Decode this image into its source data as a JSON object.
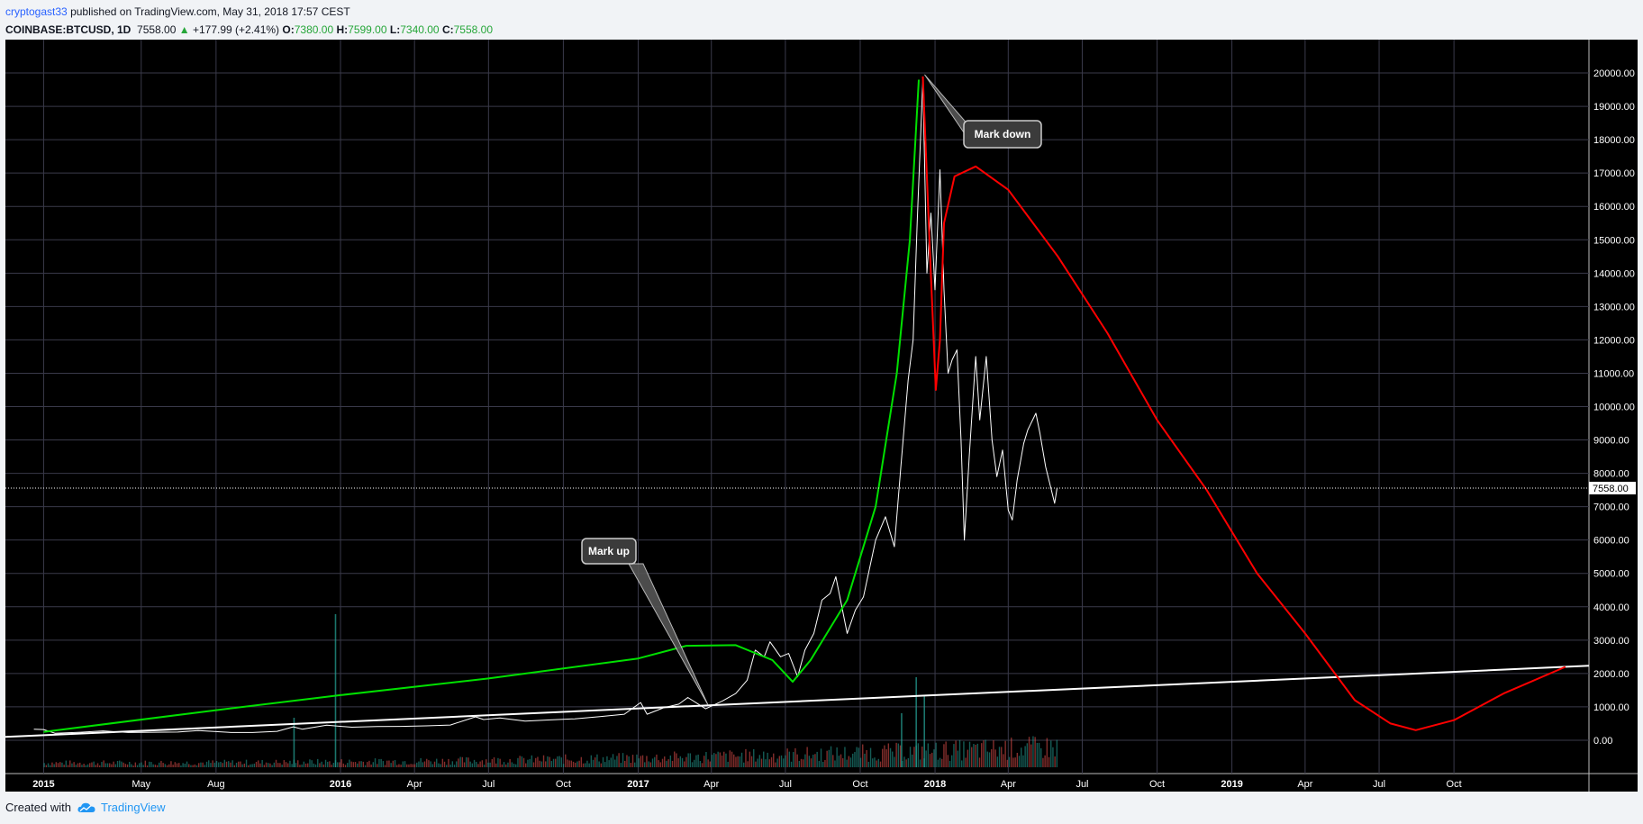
{
  "header": {
    "author": "cryptogast33",
    "published_text": "published on TradingView.com, May 31, 2018 17:57 CEST",
    "symbol": "COINBASE:BTCUSD, 1D",
    "last": "7558.00",
    "change_arrow": "▲",
    "change": "+177.99 (+2.41%)",
    "open_label": "O:",
    "open": "7380.00",
    "high_label": "H:",
    "high": "7599.00",
    "low_label": "L:",
    "low": "7340.00",
    "close_label": "C:",
    "close": "7558.00"
  },
  "footer": {
    "created_with": "Created with",
    "brand": "TradingView",
    "brand_icon": "tradingview-cloud-icon"
  },
  "colors": {
    "background": "#000000",
    "grid": "#3a3a4a",
    "price": "#ffffff",
    "markup_curve": "#00e000",
    "markdown_curve": "#ff0000",
    "trendline": "#ffffff",
    "volume_up": "#26a69a",
    "volume_down": "#ef5350"
  },
  "annotations": [
    {
      "text": "Mark up"
    },
    {
      "text": "Mark down"
    }
  ],
  "chart_data": {
    "type": "line",
    "title": "",
    "series_price_name": "",
    "last_price": 7558,
    "last_price_label": "7558.00",
    "ylim": [
      -1000,
      21000
    ],
    "yticks": [
      0,
      1000,
      2000,
      3000,
      4000,
      5000,
      6000,
      7000,
      8000,
      9000,
      10000,
      11000,
      12000,
      13000,
      14000,
      15000,
      16000,
      17000,
      18000,
      19000,
      20000
    ],
    "ytick_labels": [
      "0.00",
      "1000.00",
      "2000.00",
      "3000.00",
      "4000.00",
      "5000.00",
      "6000.00",
      "7000.00",
      "8000.00",
      "9000.00",
      "10000.00",
      "11000.00",
      "12000.00",
      "13000.00",
      "14000.00",
      "15000.00",
      "16000.00",
      "17000.00",
      "18000.00",
      "19000.00",
      "20000.00"
    ],
    "xlim": [
      "2014-11-15",
      "2020-03-15"
    ],
    "xticks": [
      {
        "date": "2015-01-01",
        "label": "2015",
        "major": true
      },
      {
        "date": "2015-05-01",
        "label": "May",
        "major": false
      },
      {
        "date": "2015-08-01",
        "label": "Aug",
        "major": false
      },
      {
        "date": "2016-01-01",
        "label": "2016",
        "major": true
      },
      {
        "date": "2016-04-01",
        "label": "Apr",
        "major": false
      },
      {
        "date": "2016-07-01",
        "label": "Jul",
        "major": false
      },
      {
        "date": "2016-10-01",
        "label": "Oct",
        "major": false
      },
      {
        "date": "2017-01-01",
        "label": "2017",
        "major": true
      },
      {
        "date": "2017-04-01",
        "label": "Apr",
        "major": false
      },
      {
        "date": "2017-07-01",
        "label": "Jul",
        "major": false
      },
      {
        "date": "2017-10-01",
        "label": "Oct",
        "major": false
      },
      {
        "date": "2018-01-01",
        "label": "2018",
        "major": true
      },
      {
        "date": "2018-04-01",
        "label": "Apr",
        "major": false
      },
      {
        "date": "2018-07-01",
        "label": "Jul",
        "major": false
      },
      {
        "date": "2018-10-01",
        "label": "Oct",
        "major": false
      },
      {
        "date": "2019-01-01",
        "label": "2019",
        "major": true
      },
      {
        "date": "2019-04-01",
        "label": "Apr",
        "major": false
      },
      {
        "date": "2019-07-01",
        "label": "Jul",
        "major": false
      },
      {
        "date": "2019-10-01",
        "label": "Oct",
        "major": false
      }
    ],
    "price_series": [
      [
        "2014-12-20",
        330
      ],
      [
        "2015-01-01",
        320
      ],
      [
        "2015-01-15",
        210
      ],
      [
        "2015-02-15",
        240
      ],
      [
        "2015-03-15",
        280
      ],
      [
        "2015-04-15",
        230
      ],
      [
        "2015-05-15",
        240
      ],
      [
        "2015-06-15",
        245
      ],
      [
        "2015-07-10",
        290
      ],
      [
        "2015-08-20",
        230
      ],
      [
        "2015-09-15",
        230
      ],
      [
        "2015-10-15",
        265
      ],
      [
        "2015-11-04",
        400
      ],
      [
        "2015-11-15",
        330
      ],
      [
        "2015-12-15",
        450
      ],
      [
        "2016-01-15",
        390
      ],
      [
        "2016-02-15",
        410
      ],
      [
        "2016-03-15",
        415
      ],
      [
        "2016-04-15",
        430
      ],
      [
        "2016-05-15",
        455
      ],
      [
        "2016-06-15",
        700
      ],
      [
        "2016-06-25",
        620
      ],
      [
        "2016-07-15",
        665
      ],
      [
        "2016-08-15",
        575
      ],
      [
        "2016-09-15",
        610
      ],
      [
        "2016-10-15",
        640
      ],
      [
        "2016-11-15",
        710
      ],
      [
        "2016-12-15",
        780
      ],
      [
        "2017-01-04",
        1130
      ],
      [
        "2017-01-12",
        780
      ],
      [
        "2017-02-01",
        970
      ],
      [
        "2017-02-20",
        1080
      ],
      [
        "2017-03-03",
        1280
      ],
      [
        "2017-03-25",
        940
      ],
      [
        "2017-04-15",
        1180
      ],
      [
        "2017-05-01",
        1400
      ],
      [
        "2017-05-15",
        1800
      ],
      [
        "2017-05-25",
        2700
      ],
      [
        "2017-06-05",
        2500
      ],
      [
        "2017-06-12",
        2950
      ],
      [
        "2017-06-25",
        2500
      ],
      [
        "2017-07-05",
        2600
      ],
      [
        "2017-07-16",
        1900
      ],
      [
        "2017-07-25",
        2700
      ],
      [
        "2017-08-05",
        3200
      ],
      [
        "2017-08-15",
        4200
      ],
      [
        "2017-08-25",
        4400
      ],
      [
        "2017-09-01",
        4900
      ],
      [
        "2017-09-15",
        3200
      ],
      [
        "2017-09-25",
        3900
      ],
      [
        "2017-10-05",
        4300
      ],
      [
        "2017-10-20",
        6000
      ],
      [
        "2017-11-01",
        6700
      ],
      [
        "2017-11-12",
        5800
      ],
      [
        "2017-11-20",
        8200
      ],
      [
        "2017-11-29",
        10800
      ],
      [
        "2017-12-05",
        12000
      ],
      [
        "2017-12-10",
        15500
      ],
      [
        "2017-12-17",
        19800
      ],
      [
        "2017-12-22",
        14000
      ],
      [
        "2017-12-27",
        15800
      ],
      [
        "2018-01-01",
        13500
      ],
      [
        "2018-01-07",
        17100
      ],
      [
        "2018-01-12",
        13500
      ],
      [
        "2018-01-17",
        11000
      ],
      [
        "2018-01-22",
        11400
      ],
      [
        "2018-01-28",
        11700
      ],
      [
        "2018-02-02",
        9000
      ],
      [
        "2018-02-06",
        6000
      ],
      [
        "2018-02-12",
        8500
      ],
      [
        "2018-02-20",
        11500
      ],
      [
        "2018-02-25",
        9600
      ],
      [
        "2018-03-05",
        11500
      ],
      [
        "2018-03-12",
        9000
      ],
      [
        "2018-03-18",
        7900
      ],
      [
        "2018-03-25",
        8700
      ],
      [
        "2018-04-01",
        6900
      ],
      [
        "2018-04-06",
        6600
      ],
      [
        "2018-04-12",
        7800
      ],
      [
        "2018-04-20",
        8900
      ],
      [
        "2018-04-25",
        9300
      ],
      [
        "2018-05-05",
        9800
      ],
      [
        "2018-05-10",
        9200
      ],
      [
        "2018-05-17",
        8200
      ],
      [
        "2018-05-24",
        7500
      ],
      [
        "2018-05-28",
        7100
      ],
      [
        "2018-05-31",
        7558
      ]
    ],
    "markup_curve": [
      [
        "2015-01-01",
        250
      ],
      [
        "2015-08-01",
        900
      ],
      [
        "2016-01-01",
        1350
      ],
      [
        "2016-07-01",
        1850
      ],
      [
        "2017-01-01",
        2450
      ],
      [
        "2017-03-01",
        2830
      ],
      [
        "2017-05-01",
        2850
      ],
      [
        "2017-06-15",
        2400
      ],
      [
        "2017-07-10",
        1750
      ],
      [
        "2017-08-01",
        2400
      ],
      [
        "2017-09-15",
        4200
      ],
      [
        "2017-10-20",
        7000
      ],
      [
        "2017-11-15",
        11000
      ],
      [
        "2017-12-01",
        15000
      ],
      [
        "2017-12-12",
        19800
      ]
    ],
    "markdown_curve": [
      [
        "2017-12-17",
        19900
      ],
      [
        "2017-12-26",
        14500
      ],
      [
        "2018-01-02",
        10500
      ],
      [
        "2018-01-07",
        12000
      ],
      [
        "2018-01-12",
        15500
      ],
      [
        "2018-01-25",
        16900
      ],
      [
        "2018-02-20",
        17200
      ],
      [
        "2018-04-01",
        16500
      ],
      [
        "2018-06-01",
        14500
      ],
      [
        "2018-08-01",
        12200
      ],
      [
        "2018-10-01",
        9600
      ],
      [
        "2018-12-01",
        7500
      ],
      [
        "2019-02-01",
        5000
      ],
      [
        "2019-04-01",
        3200
      ],
      [
        "2019-06-01",
        1200
      ],
      [
        "2019-07-15",
        500
      ],
      [
        "2019-08-15",
        300
      ],
      [
        "2019-10-01",
        600
      ],
      [
        "2019-12-01",
        1400
      ],
      [
        "2020-02-15",
        2200
      ]
    ],
    "trendline": [
      [
        "2014-11-15",
        100
      ],
      [
        "2020-03-15",
        2230
      ]
    ]
  }
}
